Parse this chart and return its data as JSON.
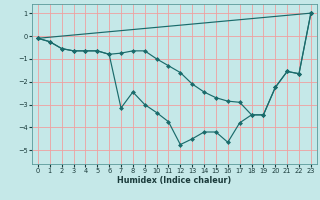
{
  "xlabel": "Humidex (Indice chaleur)",
  "bg_color": "#c5e8e8",
  "grid_color": "#f0a0a0",
  "line_color": "#1a6b6b",
  "xlim": [
    -0.5,
    23.5
  ],
  "ylim": [
    -5.6,
    1.4
  ],
  "yticks": [
    1,
    0,
    -1,
    -2,
    -3,
    -4,
    -5
  ],
  "xticks": [
    0,
    1,
    2,
    3,
    4,
    5,
    6,
    7,
    8,
    9,
    10,
    11,
    12,
    13,
    14,
    15,
    16,
    17,
    18,
    19,
    20,
    21,
    22,
    23
  ],
  "line1_x": [
    0,
    23
  ],
  "line1_y": [
    -0.1,
    1.0
  ],
  "line2_x": [
    0,
    1,
    2,
    3,
    4,
    5,
    6,
    7,
    8,
    9,
    10,
    11,
    12,
    13,
    14,
    15,
    16,
    17,
    18,
    19,
    20,
    21,
    22,
    23
  ],
  "line2_y": [
    -0.1,
    -0.25,
    -0.55,
    -0.65,
    -0.65,
    -0.65,
    -0.8,
    -3.15,
    -2.45,
    -3.0,
    -3.35,
    -3.75,
    -4.75,
    -4.5,
    -4.2,
    -4.2,
    -4.65,
    -3.8,
    -3.45,
    -3.45,
    -2.25,
    -1.55,
    -1.65,
    1.0
  ],
  "line3_x": [
    0,
    1,
    2,
    3,
    4,
    5,
    6,
    7,
    8,
    9,
    10,
    11,
    12,
    13,
    14,
    15,
    16,
    17,
    18,
    19,
    20,
    21,
    22,
    23
  ],
  "line3_y": [
    -0.1,
    -0.25,
    -0.55,
    -0.65,
    -0.65,
    -0.65,
    -0.8,
    -0.75,
    -0.65,
    -0.65,
    -1.0,
    -1.3,
    -1.6,
    -2.1,
    -2.45,
    -2.7,
    -2.85,
    -2.9,
    -3.45,
    -3.45,
    -2.25,
    -1.55,
    -1.65,
    1.0
  ]
}
